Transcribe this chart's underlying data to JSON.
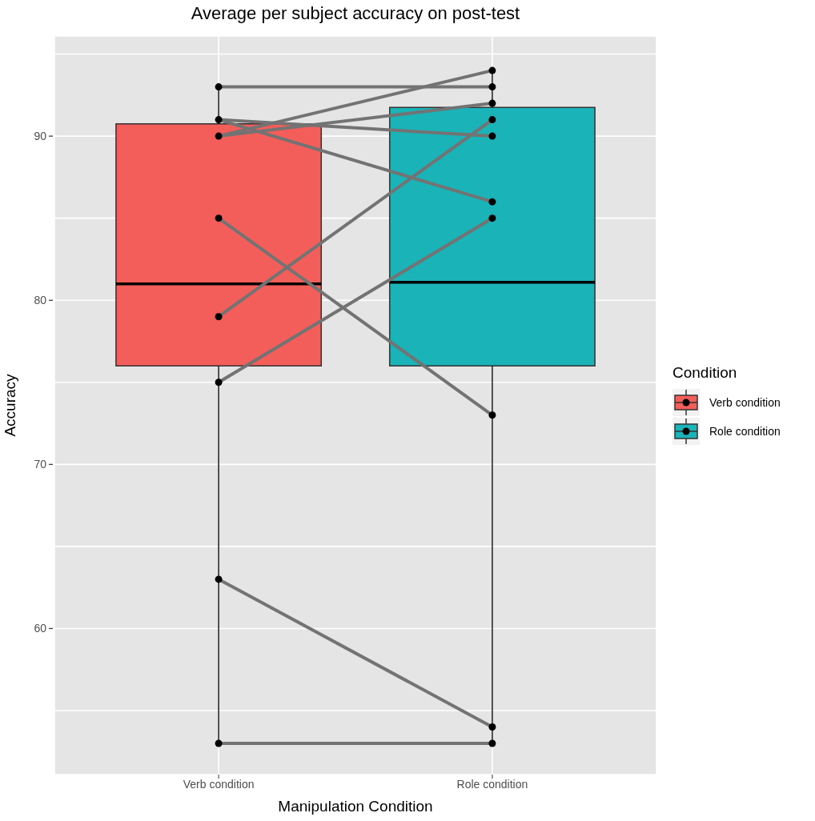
{
  "chart_data": {
    "type": "box",
    "title": "Average per subject accuracy on post-test",
    "xlabel": "Manipulation Condition",
    "ylabel": "Accuracy",
    "legend_title": "Condition",
    "legend": "right",
    "grid": true,
    "categories": [
      "Verb condition",
      "Role condition"
    ],
    "ylim": [
      51.1,
      96.1
    ],
    "yticks": [
      {
        "value": 55,
        "label": null
      },
      60,
      {
        "value": 65,
        "label": null
      },
      70,
      {
        "value": 75,
        "label": null
      },
      80,
      {
        "value": 85,
        "label": null
      },
      90,
      {
        "value": 95,
        "label": null
      }
    ],
    "series": [
      {
        "name": "Verb condition",
        "color": "#f35e5a",
        "boxes": [
          {
            "low": 53,
            "q1": 76,
            "median": 81,
            "q3": 90.75,
            "high": 93
          },
          null
        ]
      },
      {
        "name": "Role condition",
        "color": "#19b3b8",
        "boxes": [
          null,
          {
            "low": 53,
            "q1": 76,
            "median": 81.1,
            "q3": 91.75,
            "high": 94
          }
        ]
      },
      {
        "type": "line",
        "color": "#737373",
        "values": [
          93,
          93
        ]
      },
      {
        "type": "line",
        "color": "#737373",
        "values": [
          91,
          90
        ]
      },
      {
        "type": "line",
        "color": "#737373",
        "values": [
          91,
          86
        ]
      },
      {
        "type": "line",
        "color": "#737373",
        "values": [
          90,
          94
        ]
      },
      {
        "type": "line",
        "color": "#737373",
        "values": [
          90,
          92
        ]
      },
      {
        "type": "line",
        "color": "#737373",
        "values": [
          85,
          73
        ]
      },
      {
        "type": "line",
        "color": "#737373",
        "values": [
          79,
          91
        ]
      },
      {
        "type": "line",
        "color": "#737373",
        "values": [
          75,
          85
        ]
      },
      {
        "type": "line",
        "color": "#737373",
        "values": [
          63,
          54
        ]
      },
      {
        "type": "line",
        "color": "#737373",
        "values": [
          53,
          53
        ]
      },
      {
        "type": "scatter",
        "color": "#000000",
        "x": [
          "Verb condition",
          "Verb condition",
          "Verb condition",
          "Verb condition",
          "Verb condition",
          "Verb condition",
          "Verb condition",
          "Verb condition",
          "Role condition",
          "Role condition",
          "Role condition",
          "Role condition",
          "Role condition",
          "Role condition",
          "Role condition",
          "Role condition",
          "Role condition",
          "Role condition"
        ],
        "values": [
          93,
          91,
          90,
          85,
          79,
          75,
          63,
          53,
          94,
          93,
          92,
          91,
          90,
          86,
          85,
          73,
          54,
          53
        ]
      }
    ]
  }
}
